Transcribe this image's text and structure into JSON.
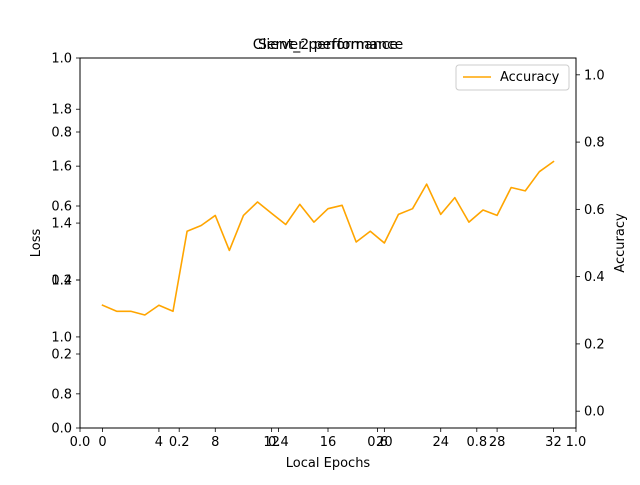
{
  "chart_data": {
    "type": "line",
    "title": "Client_2 performance",
    "title_overlay": "Server performance",
    "xlabel": "Local Epochs",
    "ylabel_left": "Loss",
    "ylabel_right": "Accuracy",
    "legend": {
      "position": "upper-right",
      "entries": [
        "Accuracy"
      ]
    },
    "grid": false,
    "axes": {
      "x_overlay_ticks": [
        "0.0",
        "0.2",
        "0.4",
        "0.6",
        "0.8",
        "1.0"
      ],
      "y_overlay_ticks": [
        "0.0",
        "0.2",
        "0.4",
        "0.6",
        "0.8",
        "1.0"
      ],
      "x_ticks": [
        "0",
        "4",
        "8",
        "12",
        "16",
        "20",
        "24",
        "28",
        "32"
      ],
      "loss_ticks": [
        "0.8",
        "1.0",
        "1.2",
        "1.4",
        "1.6",
        "1.8"
      ],
      "loss_ylim": [
        0.68,
        1.98
      ],
      "accuracy_ticks": [
        "0.0",
        "0.2",
        "0.4",
        "0.6",
        "0.8",
        "1.0"
      ],
      "accuracy_ylim": [
        -0.05,
        1.05
      ],
      "xlim": [
        -1.6,
        33.6
      ]
    },
    "series": [
      {
        "name": "Accuracy",
        "color": "#ffa500",
        "x": [
          0,
          1,
          2,
          3,
          4,
          5,
          6,
          7,
          8,
          9,
          10,
          11,
          12,
          13,
          14,
          15,
          16,
          17,
          18,
          19,
          20,
          21,
          22,
          23,
          24,
          25,
          26,
          27,
          28,
          29,
          30,
          31,
          32
        ],
        "values": [
          0.315,
          0.297,
          0.297,
          0.286,
          0.315,
          0.297,
          0.535,
          0.552,
          0.582,
          0.478,
          0.582,
          0.622,
          0.588,
          0.555,
          0.615,
          0.562,
          0.602,
          0.612,
          0.503,
          0.535,
          0.5,
          0.585,
          0.602,
          0.675,
          0.585,
          0.635,
          0.562,
          0.598,
          0.582,
          0.665,
          0.655,
          0.712,
          0.742
        ]
      }
    ]
  }
}
